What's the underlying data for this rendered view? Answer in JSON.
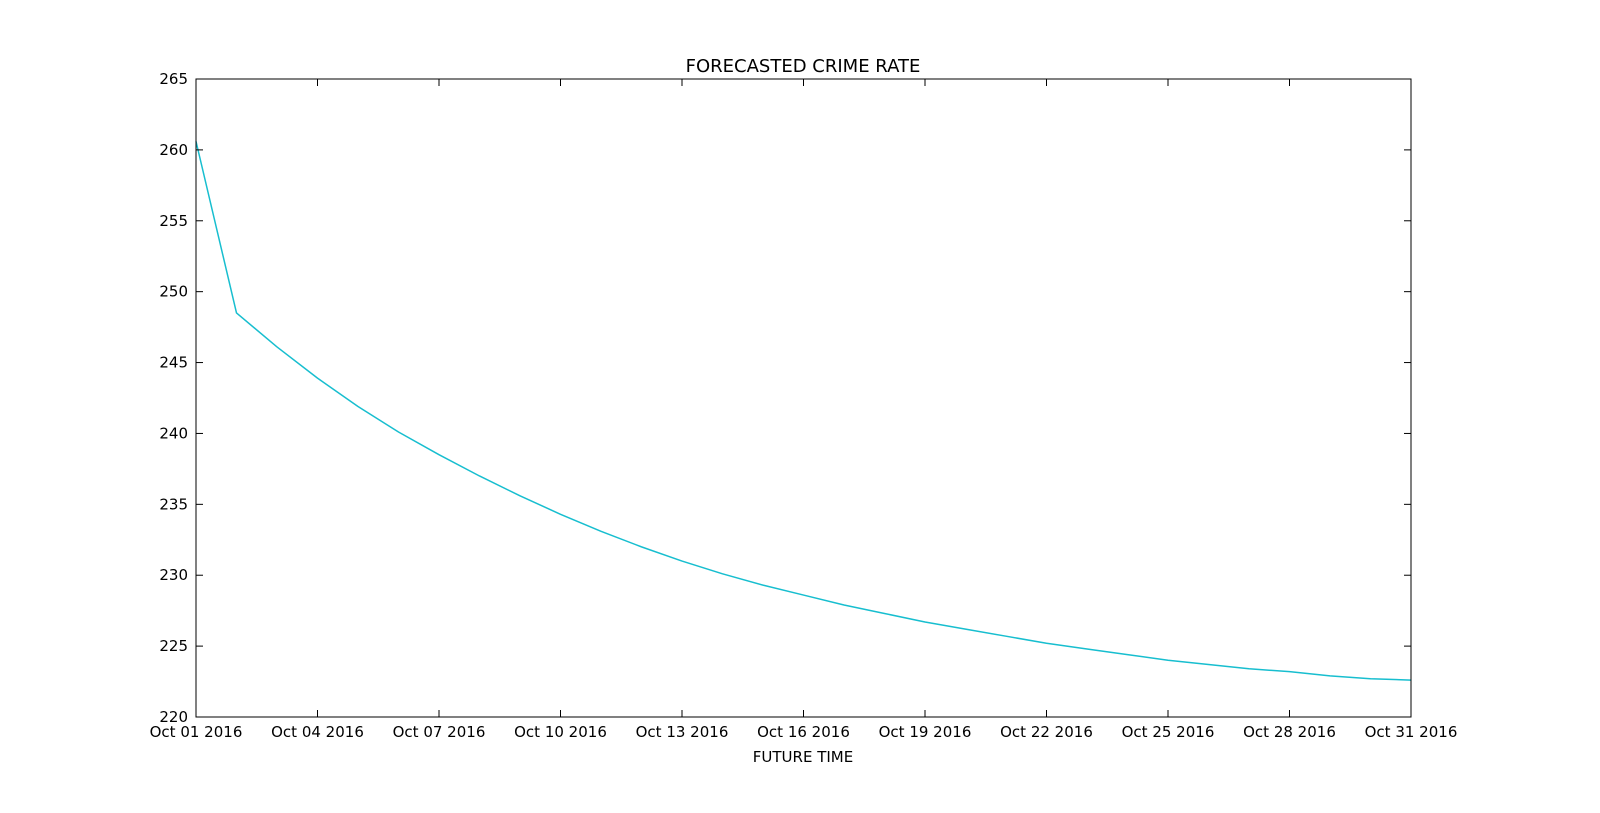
{
  "chart_data": {
    "type": "line",
    "title": "FORECASTED CRIME RATE",
    "xlabel": "FUTURE TIME",
    "ylabel": "",
    "ylim": [
      220,
      265
    ],
    "xlim": [
      "2016-10-01",
      "2016-10-31"
    ],
    "grid": false,
    "x_tick_labels": [
      "Oct 01 2016",
      "Oct 04 2016",
      "Oct 07 2016",
      "Oct 10 2016",
      "Oct 13 2016",
      "Oct 16 2016",
      "Oct 19 2016",
      "Oct 22 2016",
      "Oct 25 2016",
      "Oct 28 2016",
      "Oct 31 2016"
    ],
    "y_tick_labels": [
      "220",
      "225",
      "230",
      "235",
      "240",
      "245",
      "250",
      "255",
      "260",
      "265"
    ],
    "y_ticks": [
      220,
      225,
      230,
      235,
      240,
      245,
      250,
      255,
      260,
      265
    ],
    "x_ticks": [
      "2016-10-01",
      "2016-10-04",
      "2016-10-07",
      "2016-10-10",
      "2016-10-13",
      "2016-10-16",
      "2016-10-19",
      "2016-10-22",
      "2016-10-25",
      "2016-10-28",
      "2016-10-31"
    ],
    "series": [
      {
        "color": "#17becf",
        "x": [
          "2016-10-01",
          "2016-10-02",
          "2016-10-03",
          "2016-10-04",
          "2016-10-05",
          "2016-10-06",
          "2016-10-07",
          "2016-10-08",
          "2016-10-09",
          "2016-10-10",
          "2016-10-11",
          "2016-10-12",
          "2016-10-13",
          "2016-10-14",
          "2016-10-15",
          "2016-10-16",
          "2016-10-17",
          "2016-10-18",
          "2016-10-19",
          "2016-10-20",
          "2016-10-21",
          "2016-10-22",
          "2016-10-23",
          "2016-10-24",
          "2016-10-25",
          "2016-10-26",
          "2016-10-27",
          "2016-10-28",
          "2016-10-29",
          "2016-10-30",
          "2016-10-31"
        ],
        "values": [
          260.6,
          248.5,
          246.1,
          243.9,
          241.9,
          240.1,
          238.5,
          237.0,
          235.6,
          234.3,
          233.1,
          232.0,
          231.0,
          230.1,
          229.3,
          228.6,
          227.9,
          227.3,
          226.7,
          226.2,
          225.7,
          225.2,
          224.8,
          224.4,
          224.0,
          223.7,
          223.4,
          223.2,
          222.9,
          222.7,
          222.6
        ]
      }
    ]
  }
}
